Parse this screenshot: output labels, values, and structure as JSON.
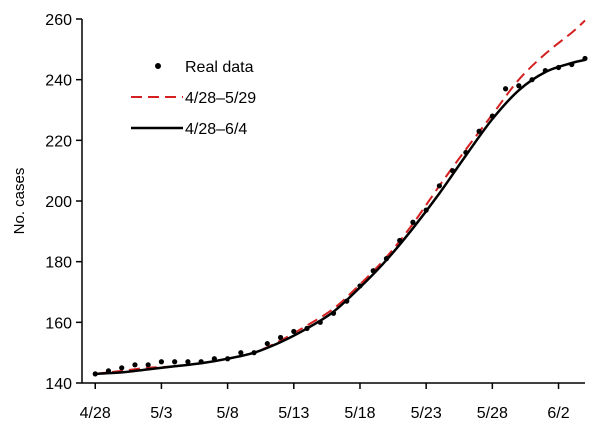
{
  "chart_data": {
    "type": "line",
    "title": "",
    "xlabel": "",
    "ylabel": "No. cases",
    "xlim": [
      "2009-04-27",
      "2009-06-04"
    ],
    "ylim": [
      140,
      260
    ],
    "x_ticks": [
      "4/28",
      "5/3",
      "5/8",
      "5/13",
      "5/18",
      "5/23",
      "5/28",
      "6/2"
    ],
    "x_tick_dates": [
      "2009-04-28",
      "2009-05-03",
      "2009-05-08",
      "2009-05-13",
      "2009-05-18",
      "2009-05-23",
      "2009-05-28",
      "2009-06-02"
    ],
    "y_ticks": [
      140,
      160,
      180,
      200,
      220,
      240,
      260
    ],
    "grid": false,
    "legend_position": "top-left",
    "colors": {
      "real": "#000000",
      "fit_may29": "#d42020",
      "fit_jun4": "#000000"
    },
    "series": [
      {
        "name": "Real data",
        "style": "points",
        "x": [
          "2009-04-28",
          "2009-04-29",
          "2009-04-30",
          "2009-05-01",
          "2009-05-02",
          "2009-05-03",
          "2009-05-04",
          "2009-05-05",
          "2009-05-06",
          "2009-05-07",
          "2009-05-08",
          "2009-05-09",
          "2009-05-10",
          "2009-05-11",
          "2009-05-12",
          "2009-05-13",
          "2009-05-14",
          "2009-05-15",
          "2009-05-16",
          "2009-05-17",
          "2009-05-18",
          "2009-05-19",
          "2009-05-20",
          "2009-05-21",
          "2009-05-22",
          "2009-05-23",
          "2009-05-24",
          "2009-05-25",
          "2009-05-26",
          "2009-05-27",
          "2009-05-28",
          "2009-05-29",
          "2009-05-30",
          "2009-05-31",
          "2009-06-01",
          "2009-06-02",
          "2009-06-03",
          "2009-06-04"
        ],
        "values": [
          143,
          144,
          145,
          146,
          146,
          147,
          147,
          147,
          147,
          148,
          148,
          150,
          150,
          153,
          155,
          157,
          158,
          160,
          163,
          167,
          172,
          177,
          181,
          187,
          193,
          197,
          205,
          210,
          216,
          223,
          228,
          237,
          238,
          240,
          243,
          244,
          245,
          247
        ]
      },
      {
        "name": "4/28–5/29",
        "style": "dashed",
        "x": [
          "2009-04-28",
          "2009-04-30",
          "2009-05-02",
          "2009-05-04",
          "2009-05-06",
          "2009-05-08",
          "2009-05-10",
          "2009-05-12",
          "2009-05-14",
          "2009-05-16",
          "2009-05-18",
          "2009-05-20",
          "2009-05-22",
          "2009-05-24",
          "2009-05-26",
          "2009-05-28",
          "2009-05-30",
          "2009-06-01",
          "2009-06-03",
          "2009-06-04"
        ],
        "values": [
          143,
          144,
          145,
          145.5,
          146.5,
          148,
          150,
          154,
          159,
          164.5,
          172.5,
          181.5,
          192.5,
          205,
          217,
          228.5,
          240,
          248.5,
          255.5,
          259.5
        ]
      },
      {
        "name": "4/28–6/4",
        "style": "solid",
        "x": [
          "2009-04-28",
          "2009-04-30",
          "2009-05-02",
          "2009-05-04",
          "2009-05-06",
          "2009-05-08",
          "2009-05-10",
          "2009-05-12",
          "2009-05-14",
          "2009-05-16",
          "2009-05-18",
          "2009-05-20",
          "2009-05-22",
          "2009-05-24",
          "2009-05-26",
          "2009-05-28",
          "2009-05-30",
          "2009-06-01",
          "2009-06-03",
          "2009-06-04"
        ],
        "values": [
          143,
          143.5,
          144.5,
          145.5,
          146.5,
          148,
          150,
          153.5,
          158,
          163.5,
          171.5,
          180.5,
          191,
          202.5,
          215,
          227,
          236.5,
          242.5,
          245.5,
          246.5
        ]
      }
    ]
  }
}
